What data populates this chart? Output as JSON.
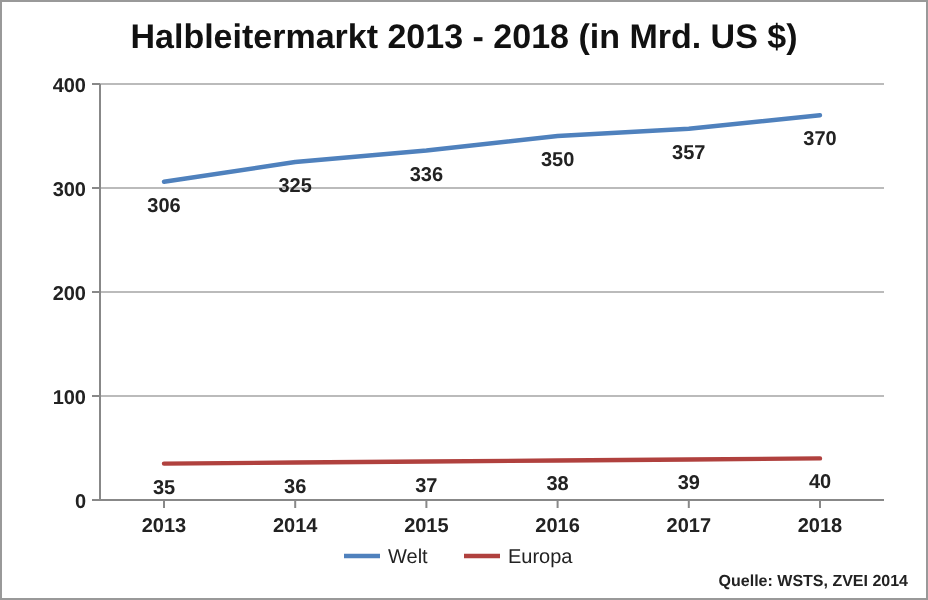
{
  "chart_data": {
    "type": "line",
    "title": "Halbleitermarkt 2013 - 2018 (in Mrd. US $)",
    "categories": [
      "2013",
      "2014",
      "2015",
      "2016",
      "2017",
      "2018"
    ],
    "series": [
      {
        "name": "Welt",
        "color": "#4f81bd",
        "values": [
          306,
          325,
          336,
          350,
          357,
          370
        ]
      },
      {
        "name": "Europa",
        "color": "#b0413e",
        "values": [
          35,
          36,
          37,
          38,
          39,
          40
        ]
      }
    ],
    "ylim": [
      0,
      400
    ],
    "yticks": [
      0,
      100,
      200,
      300,
      400
    ],
    "grid": "y",
    "legend": "bottom",
    "data_labels": true,
    "marker": "none",
    "line_style": "solid",
    "annotations": [
      "Quelle:  WSTS, ZVEI 2014"
    ]
  }
}
